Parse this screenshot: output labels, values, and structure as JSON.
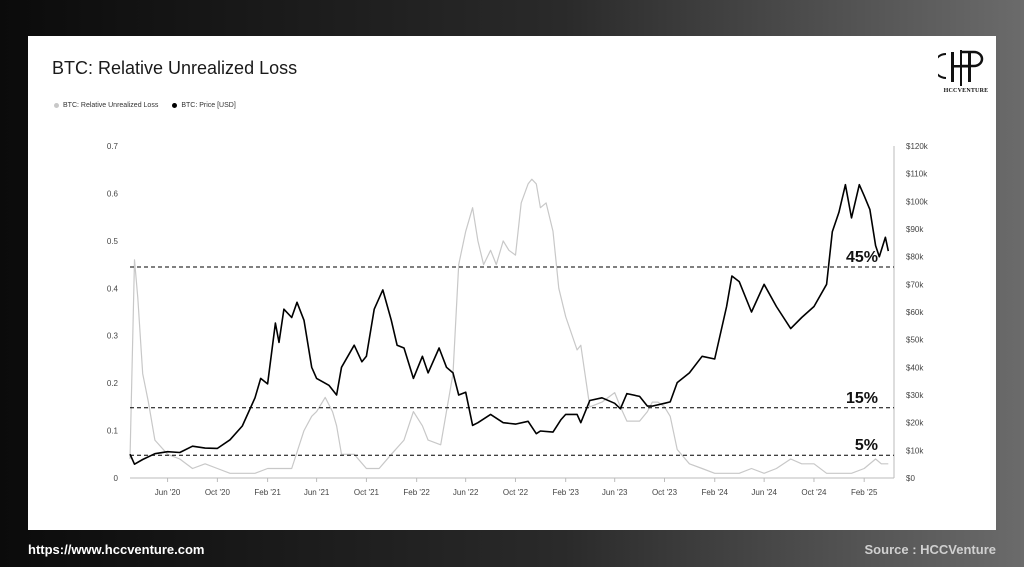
{
  "footer": {
    "url": "https://www.hccventure.com",
    "source": "Source : HCCVenture"
  },
  "logo": {
    "text": "HCCVENTURE",
    "icon": "hcc-monogram-logo"
  },
  "colors": {
    "price": "#000000",
    "loss": "#c8c8c8",
    "band": "#000000"
  },
  "chart_data": {
    "type": "line",
    "title": "BTC: Relative Unrealized Loss",
    "legend": {
      "placement": "top-left",
      "entries": [
        "BTC: Relative Unrealized Loss",
        "BTC: Price [USD]"
      ]
    },
    "x_ticks": [
      "Jun '20",
      "Oct '20",
      "Feb '21",
      "Jun '21",
      "Oct '21",
      "Feb '22",
      "Jun '22",
      "Oct '22",
      "Feb '23",
      "Jun '23",
      "Oct '23",
      "Feb '24",
      "Jun '24",
      "Oct '24",
      "Feb '25"
    ],
    "xlim": [
      "2020-03-01",
      "2025-04-15"
    ],
    "y_left": {
      "ticks": [
        "0",
        "0.1",
        "0.2",
        "0.3",
        "0.4",
        "0.5",
        "0.6",
        "0.7"
      ],
      "lim": [
        0,
        0.7
      ]
    },
    "y_right": {
      "ticks": [
        "$0",
        "$10k",
        "$20k",
        "$30k",
        "$40k",
        "$50k",
        "$60k",
        "$70k",
        "$80k",
        "$90k",
        "$100k",
        "$110k",
        "$120k"
      ],
      "lim": [
        0,
        120000
      ]
    },
    "grid": false,
    "reference_lines": [
      {
        "label": "45%",
        "value": 0.445
      },
      {
        "label": "15%",
        "value": 0.148
      },
      {
        "label": "5%",
        "value": 0.048
      }
    ],
    "series": [
      {
        "name": "BTC: Relative Unrealized Loss",
        "axis": "left",
        "x": [
          "2020-03-01",
          "2020-03-12",
          "2020-03-20",
          "2020-04-01",
          "2020-04-15",
          "2020-05-01",
          "2020-06-01",
          "2020-07-01",
          "2020-08-01",
          "2020-09-01",
          "2020-10-01",
          "2020-11-01",
          "2020-12-01",
          "2021-01-01",
          "2021-02-01",
          "2021-03-01",
          "2021-04-01",
          "2021-05-01",
          "2021-05-20",
          "2021-06-01",
          "2021-06-22",
          "2021-07-10",
          "2021-07-20",
          "2021-08-01",
          "2021-09-01",
          "2021-10-01",
          "2021-11-01",
          "2021-12-01",
          "2022-01-01",
          "2022-01-24",
          "2022-02-15",
          "2022-03-01",
          "2022-04-01",
          "2022-05-01",
          "2022-05-15",
          "2022-06-01",
          "2022-06-18",
          "2022-07-01",
          "2022-07-15",
          "2022-08-01",
          "2022-08-15",
          "2022-09-01",
          "2022-09-15",
          "2022-10-01",
          "2022-10-15",
          "2022-11-01",
          "2022-11-10",
          "2022-11-21",
          "2022-12-01",
          "2022-12-15",
          "2023-01-01",
          "2023-01-15",
          "2023-02-01",
          "2023-03-01",
          "2023-03-10",
          "2023-04-01",
          "2023-05-01",
          "2023-06-01",
          "2023-06-15",
          "2023-07-01",
          "2023-08-01",
          "2023-08-20",
          "2023-09-01",
          "2023-09-15",
          "2023-10-01",
          "2023-10-15",
          "2023-11-01",
          "2023-12-01",
          "2024-01-01",
          "2024-02-01",
          "2024-03-01",
          "2024-04-01",
          "2024-05-01",
          "2024-06-01",
          "2024-07-01",
          "2024-08-05",
          "2024-09-01",
          "2024-10-01",
          "2024-11-01",
          "2024-12-01",
          "2025-01-01",
          "2025-02-01",
          "2025-03-01",
          "2025-03-15",
          "2025-04-01"
        ],
        "values": [
          0.04,
          0.46,
          0.38,
          0.22,
          0.16,
          0.08,
          0.05,
          0.04,
          0.02,
          0.03,
          0.02,
          0.01,
          0.01,
          0.01,
          0.02,
          0.02,
          0.02,
          0.1,
          0.13,
          0.14,
          0.17,
          0.14,
          0.11,
          0.05,
          0.05,
          0.02,
          0.02,
          0.05,
          0.08,
          0.14,
          0.11,
          0.08,
          0.07,
          0.22,
          0.45,
          0.52,
          0.57,
          0.5,
          0.45,
          0.48,
          0.45,
          0.5,
          0.48,
          0.47,
          0.58,
          0.62,
          0.63,
          0.62,
          0.57,
          0.58,
          0.52,
          0.4,
          0.34,
          0.27,
          0.28,
          0.15,
          0.16,
          0.18,
          0.15,
          0.12,
          0.12,
          0.14,
          0.16,
          0.16,
          0.15,
          0.13,
          0.06,
          0.03,
          0.02,
          0.01,
          0.01,
          0.01,
          0.02,
          0.01,
          0.02,
          0.04,
          0.03,
          0.03,
          0.01,
          0.01,
          0.01,
          0.02,
          0.04,
          0.03,
          0.03
        ]
      },
      {
        "name": "BTC: Price [USD]",
        "axis": "right",
        "x": [
          "2020-03-01",
          "2020-03-12",
          "2020-04-01",
          "2020-05-01",
          "2020-06-01",
          "2020-07-01",
          "2020-08-01",
          "2020-09-01",
          "2020-10-01",
          "2020-11-01",
          "2020-12-01",
          "2021-01-01",
          "2021-01-15",
          "2021-02-01",
          "2021-02-20",
          "2021-03-01",
          "2021-03-13",
          "2021-04-01",
          "2021-04-14",
          "2021-05-01",
          "2021-05-20",
          "2021-06-01",
          "2021-07-01",
          "2021-07-20",
          "2021-08-01",
          "2021-09-01",
          "2021-09-20",
          "2021-10-01",
          "2021-10-20",
          "2021-11-10",
          "2021-12-01",
          "2021-12-15",
          "2022-01-01",
          "2022-01-24",
          "2022-02-15",
          "2022-03-01",
          "2022-03-28",
          "2022-04-15",
          "2022-05-01",
          "2022-05-15",
          "2022-06-01",
          "2022-06-18",
          "2022-07-01",
          "2022-08-01",
          "2022-09-01",
          "2022-10-01",
          "2022-11-01",
          "2022-11-21",
          "2022-12-01",
          "2023-01-01",
          "2023-01-20",
          "2023-02-01",
          "2023-03-01",
          "2023-03-10",
          "2023-04-01",
          "2023-05-01",
          "2023-06-01",
          "2023-06-15",
          "2023-07-01",
          "2023-08-01",
          "2023-08-20",
          "2023-09-01",
          "2023-10-01",
          "2023-10-15",
          "2023-11-01",
          "2023-12-01",
          "2024-01-01",
          "2024-02-01",
          "2024-03-01",
          "2024-03-14",
          "2024-04-01",
          "2024-05-01",
          "2024-06-01",
          "2024-07-01",
          "2024-08-05",
          "2024-09-01",
          "2024-10-01",
          "2024-11-01",
          "2024-11-15",
          "2024-12-01",
          "2024-12-17",
          "2025-01-01",
          "2025-01-20",
          "2025-02-01",
          "2025-02-15",
          "2025-03-01",
          "2025-03-10",
          "2025-03-25",
          "2025-04-01"
        ],
        "values": [
          8600,
          5000,
          6700,
          8800,
          9500,
          9200,
          11500,
          10800,
          10700,
          13800,
          18800,
          29000,
          36000,
          34000,
          56000,
          49000,
          61000,
          58000,
          63500,
          57000,
          40000,
          36000,
          33500,
          30000,
          40000,
          48000,
          42000,
          44000,
          61000,
          68000,
          57000,
          48000,
          47000,
          36000,
          44000,
          38000,
          47000,
          40000,
          38000,
          30000,
          31000,
          19000,
          20000,
          23000,
          20000,
          19500,
          20500,
          16000,
          17000,
          16600,
          21000,
          23000,
          23000,
          20000,
          28000,
          29000,
          27000,
          25000,
          30500,
          29500,
          26000,
          26000,
          27000,
          27500,
          34500,
          38000,
          44000,
          43000,
          62000,
          73000,
          71000,
          60000,
          70000,
          62000,
          54000,
          58000,
          62000,
          70000,
          89000,
          96000,
          106000,
          94000,
          106000,
          102000,
          97000,
          84000,
          80000,
          87000,
          82000
        ]
      }
    ]
  }
}
